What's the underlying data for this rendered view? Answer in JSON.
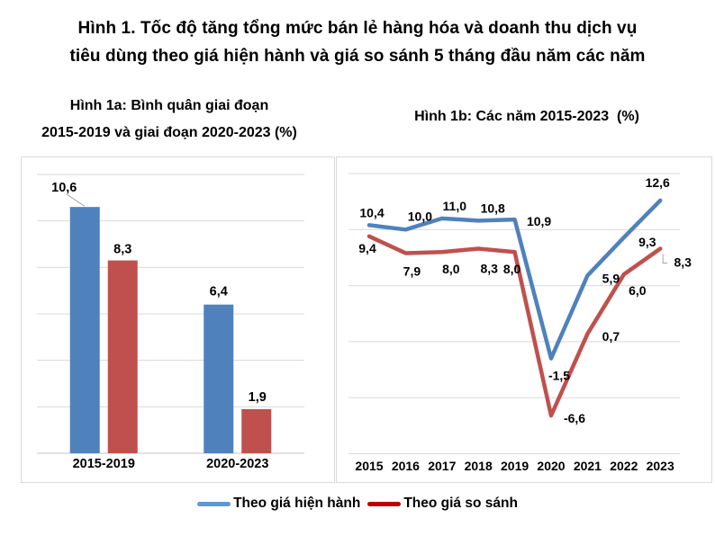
{
  "title": {
    "line1": "Hình 1. Tốc độ tăng tổng mức bán lẻ hàng hóa và doanh thu dịch vụ",
    "line2": "tiêu dùng theo giá hiện hành và giá so sánh 5 tháng đầu năm các năm"
  },
  "legend": [
    {
      "label": "Theo giá hiện hành",
      "color": "#5B9BD5"
    },
    {
      "label": "Theo giá so sánh",
      "color": "#C00000"
    }
  ],
  "colors": {
    "series_blue": "#4F81BD",
    "series_red": "#C0504D",
    "gridline": "#D9D9D9",
    "axis_line": "#C6C6C6",
    "leader_line": "#A6A6A6",
    "panel_border": "#D9D9D9",
    "text": "#000000"
  },
  "chart_data": [
    {
      "type": "bar",
      "subtitle_line1": "Hình 1a: Bình quân giai đoạn",
      "subtitle_line2": "2015-2019 và giai đoạn 2020-2023 (%)",
      "categories": [
        "2015-2019",
        "2020-2023"
      ],
      "series": [
        {
          "name": "Theo giá hiện hành",
          "color": "#4F81BD",
          "values": [
            10.6,
            6.4
          ],
          "value_labels": [
            "10,6",
            "6,4"
          ],
          "label_offsets": [
            [
              -23,
              -17
            ],
            [
              0,
              -10
            ]
          ],
          "leader_index": 0
        },
        {
          "name": "Theo giá so sánh",
          "color": "#C0504D",
          "values": [
            8.3,
            1.9
          ],
          "value_labels": [
            "8,3",
            "1,9"
          ],
          "label_offsets": [
            [
              0,
              -8
            ],
            [
              1,
              -9
            ]
          ]
        }
      ],
      "ylim": [
        0,
        12
      ],
      "grid_step": 2,
      "grid": true,
      "y_axis_labels_shown": false
    },
    {
      "type": "line",
      "subtitle": "Hình 1b: Các năm 2015-2023  (%)",
      "x": [
        "2015",
        "2016",
        "2017",
        "2018",
        "2019",
        "2020",
        "2021",
        "2022",
        "2023"
      ],
      "series": [
        {
          "name": "Theo giá hiện hành",
          "color": "#4F81BD",
          "values": [
            10.4,
            10.0,
            11.0,
            10.8,
            10.9,
            -1.5,
            5.9,
            9.3,
            12.6
          ],
          "value_labels": [
            "10,4",
            "10,0",
            "11,0",
            "10,8",
            "10,9",
            "-1,5",
            "5,9",
            "9,3",
            "12,6"
          ],
          "label_offsets": [
            [
              3,
              -9
            ],
            [
              16,
              -10
            ],
            [
              14,
              -9
            ],
            [
              16,
              -9
            ],
            [
              27,
              7
            ],
            [
              9,
              24
            ],
            [
              26,
              8
            ],
            [
              26,
              10
            ],
            [
              -3,
              -15
            ]
          ]
        },
        {
          "name": "Theo giá so sánh",
          "color": "#C0504D",
          "values": [
            9.4,
            7.9,
            8.0,
            8.3,
            8.0,
            -6.6,
            0.7,
            6.0,
            8.3
          ],
          "value_labels": [
            "9,4",
            "7,9",
            "8,0",
            "8,3",
            "8,0",
            "-6,6",
            "0,7",
            "6,0",
            "8,3"
          ],
          "label_offsets": [
            [
              -2,
              18
            ],
            [
              7,
              25
            ],
            [
              10,
              24
            ],
            [
              12,
              27
            ],
            [
              -3,
              24
            ],
            [
              26,
              8
            ],
            [
              26,
              8
            ],
            [
              15,
              23
            ],
            [
              25,
              20
            ]
          ],
          "leader_index": 8
        }
      ],
      "ylim": [
        -10,
        15
      ],
      "grid_step": 5,
      "grid": true,
      "legend_position": "bottom"
    }
  ]
}
